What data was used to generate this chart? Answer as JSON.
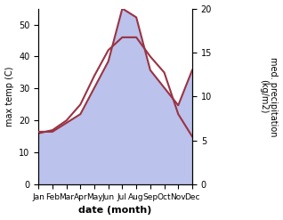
{
  "months": [
    "Jan",
    "Feb",
    "Mar",
    "Apr",
    "May",
    "Jun",
    "Jul",
    "Aug",
    "Sep",
    "Oct",
    "Nov",
    "Dec"
  ],
  "temp_max": [
    16,
    17,
    20,
    25,
    34,
    42,
    46,
    46,
    40,
    35,
    22,
    15
  ],
  "precip": [
    6,
    6,
    7,
    8,
    11,
    14,
    20,
    19,
    13,
    11,
    9,
    13
  ],
  "temp_color": "#993344",
  "precip_fill_color": "#b0b8e8",
  "ylabel_left": "max temp (C)",
  "ylabel_right": "med. precipitation\n(kg/m2)",
  "xlabel": "date (month)",
  "ylim_left": [
    0,
    55
  ],
  "ylim_right": [
    0,
    20
  ],
  "yticks_left": [
    0,
    10,
    20,
    30,
    40,
    50
  ],
  "yticks_right": [
    0,
    5,
    10,
    15,
    20
  ]
}
